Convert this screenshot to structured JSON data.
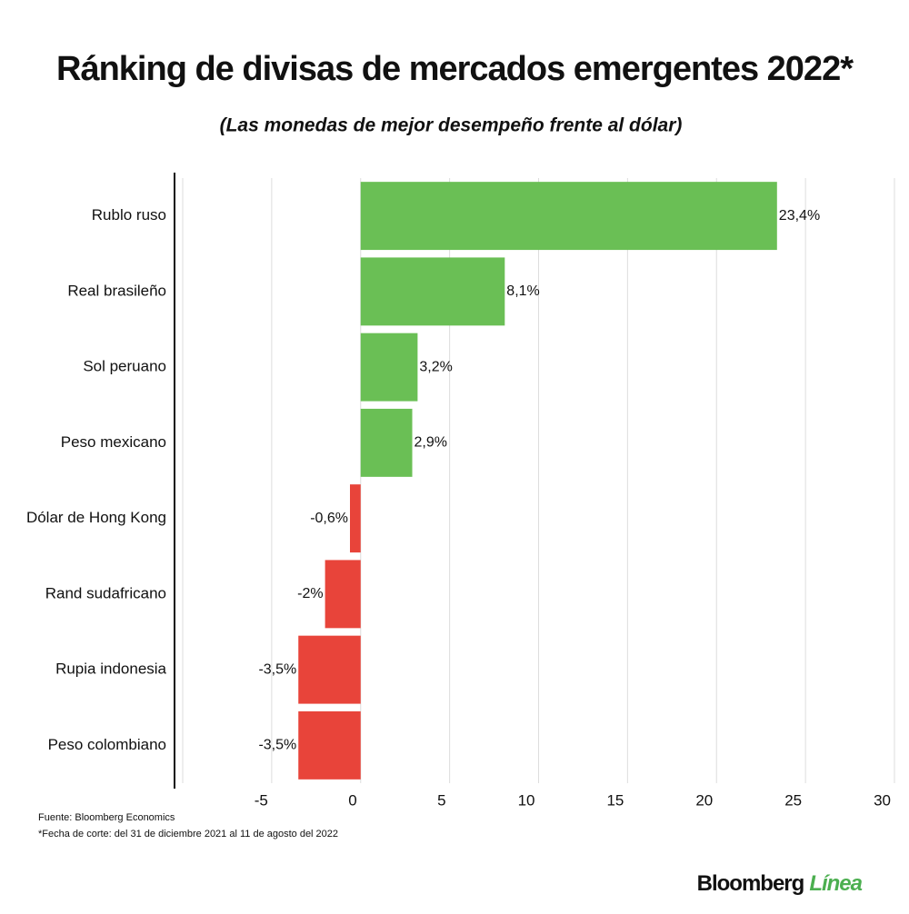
{
  "chart_data": {
    "type": "barh",
    "title": "Ránking de divisas de mercados emergentes 2022*",
    "subtitle": "(Las monedas de mejor desempeño frente al dólar)",
    "categories": [
      "Rublo ruso",
      "Real brasileño",
      "Sol peruano",
      "Peso mexicano",
      "Dólar de Hong Kong",
      "Rand sudafricano",
      "Rupia indonesia",
      "Peso colombiano"
    ],
    "values": [
      23.4,
      8.1,
      3.2,
      2.9,
      -0.6,
      -2,
      -3.5,
      -3.5
    ],
    "value_labels": [
      "23,4%",
      "8,1%",
      "3,2%",
      "2,9%",
      "-0,6%",
      "-2%",
      "-3,5%",
      "-3,5%"
    ],
    "positive_color": "#6abf55",
    "negative_color": "#e8443a",
    "xlim": [
      -10,
      30
    ],
    "xticks": [
      -5,
      0,
      5,
      10,
      15,
      20,
      25,
      30
    ],
    "grid": true,
    "source": "Fuente: Bloomberg Economics",
    "note": "*Fecha de corte: del 31 de diciembre 2021 al 11 de agosto del 2022",
    "brand": "Bloomberg",
    "brand_accent": "Línea"
  }
}
